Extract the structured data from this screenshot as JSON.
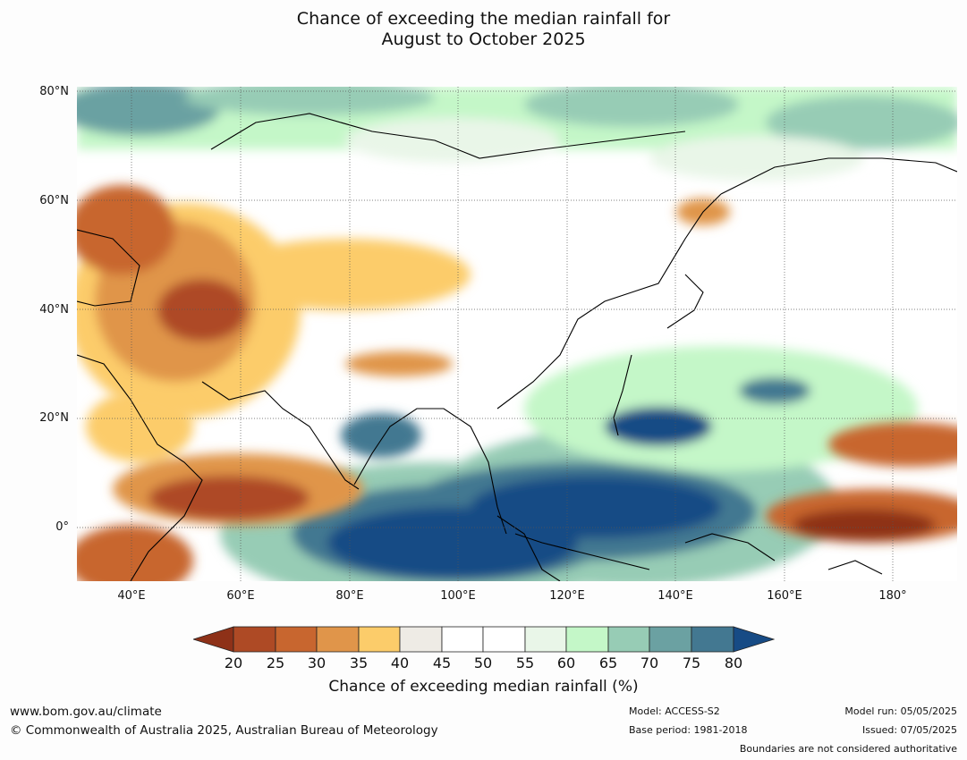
{
  "title": {
    "line1": "Chance of exceeding the median rainfall for",
    "line2": "August to October 2025"
  },
  "map": {
    "lat_labels": [
      "80°N",
      "60°N",
      "40°N",
      "20°N",
      "0°"
    ],
    "lon_labels": [
      "40°E",
      "60°E",
      "80°E",
      "100°E",
      "120°E",
      "140°E",
      "160°E",
      "180°"
    ],
    "extent": {
      "lon": [
        30,
        192
      ],
      "lat": [
        -10,
        81
      ]
    }
  },
  "colorbar": {
    "ticks": [
      "20",
      "25",
      "30",
      "35",
      "40",
      "45",
      "50",
      "55",
      "60",
      "65",
      "70",
      "75",
      "80"
    ],
    "colors": [
      "#8e3118",
      "#ae4a25",
      "#c8662f",
      "#e0954a",
      "#fccc6a",
      "#eeebe5",
      "#ffffff",
      "#ffffff",
      "#e9f6e8",
      "#c4f7c8",
      "#97ccb5",
      "#6ba1a2",
      "#437891",
      "#174b85"
    ],
    "label": "Chance of exceeding median rainfall (%)"
  },
  "footer": {
    "url": "www.bom.gov.au/climate",
    "copyright": "© Commonwealth of Australia 2025, Australian Bureau of Meteorology",
    "model": "Model: ACCESS-S2",
    "base_period": "Base period: 1981-2018",
    "model_run": "Model run: 05/05/2025",
    "issued": "Issued: 07/05/2025",
    "disclaimer": "Boundaries are not considered authoritative"
  }
}
